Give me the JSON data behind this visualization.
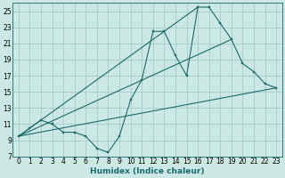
{
  "bg_color": "#cce8e4",
  "grid_color": "#aacfcb",
  "line_color": "#1a6b6b",
  "xlabel": "Humidex (Indice chaleur)",
  "xlim": [
    -0.5,
    23.5
  ],
  "ylim": [
    7,
    26
  ],
  "xticks": [
    0,
    1,
    2,
    3,
    4,
    5,
    6,
    7,
    8,
    9,
    10,
    11,
    12,
    13,
    14,
    15,
    16,
    17,
    18,
    19,
    20,
    21,
    22,
    23
  ],
  "yticks": [
    7,
    9,
    11,
    13,
    15,
    17,
    19,
    21,
    23,
    25
  ],
  "line1_x": [
    0,
    1,
    2,
    3,
    4,
    5,
    6,
    7,
    8,
    9,
    10,
    11,
    12,
    13,
    14,
    15,
    16,
    17,
    18,
    19,
    20,
    21,
    22,
    23
  ],
  "line1_y": [
    9.5,
    10.5,
    11.5,
    11.0,
    10.0,
    10.0,
    9.5,
    8.0,
    7.5,
    9.5,
    14.0,
    16.5,
    22.5,
    22.5,
    19.5,
    17.0,
    25.5,
    25.5,
    23.5,
    21.5,
    18.5,
    17.5,
    16.0,
    15.5
  ],
  "line2_x": [
    0,
    23
  ],
  "line2_y": [
    9.5,
    15.5
  ],
  "line3_x": [
    0,
    19
  ],
  "line3_y": [
    9.5,
    21.5
  ],
  "line4_x": [
    0,
    16
  ],
  "line4_y": [
    9.5,
    25.5
  ],
  "xlabel_fontsize": 6.5,
  "tick_fontsize": 5.5
}
